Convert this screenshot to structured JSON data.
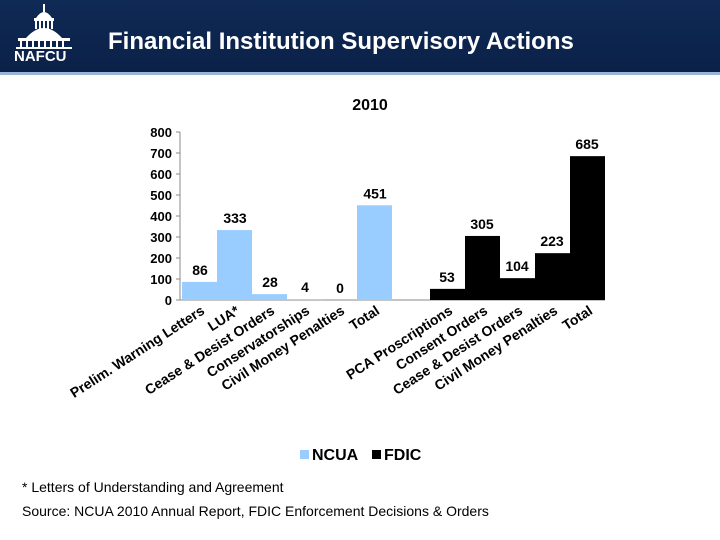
{
  "header": {
    "logo_text": "NAFCU",
    "title": "Financial Institution Supervisory Actions"
  },
  "chart_data": {
    "type": "bar",
    "title": "2010",
    "ylim": [
      0,
      800
    ],
    "yticks": [
      0,
      100,
      200,
      300,
      400,
      500,
      600,
      700,
      800
    ],
    "legend": {
      "position": "bottom",
      "entries": [
        "NCUA",
        "FDIC"
      ]
    },
    "series": [
      {
        "name": "NCUA",
        "color": "#99ccff",
        "categories": [
          "Prelim. Warning Letters",
          "LUA*",
          "Cease & Desist Orders",
          "Conservatorships",
          "Civil Money Penalties",
          "Total"
        ],
        "values": [
          86,
          333,
          28,
          4,
          0,
          451
        ]
      },
      {
        "name": "FDIC",
        "color": "#000000",
        "categories": [
          "PCA Proscriptions",
          "Consent Orders",
          "Cease & Desist Orders",
          "Civil Money Penalties",
          "Total"
        ],
        "values": [
          53,
          305,
          104,
          223,
          685
        ]
      }
    ]
  },
  "footnotes": {
    "asterisk": "* Letters of Understanding and Agreement",
    "source": "Source: NCUA 2010 Annual Report, FDIC Enforcement Decisions & Orders"
  },
  "colors": {
    "header_bg": "#0f2a55",
    "ncua": "#99ccff",
    "fdic": "#000000"
  }
}
